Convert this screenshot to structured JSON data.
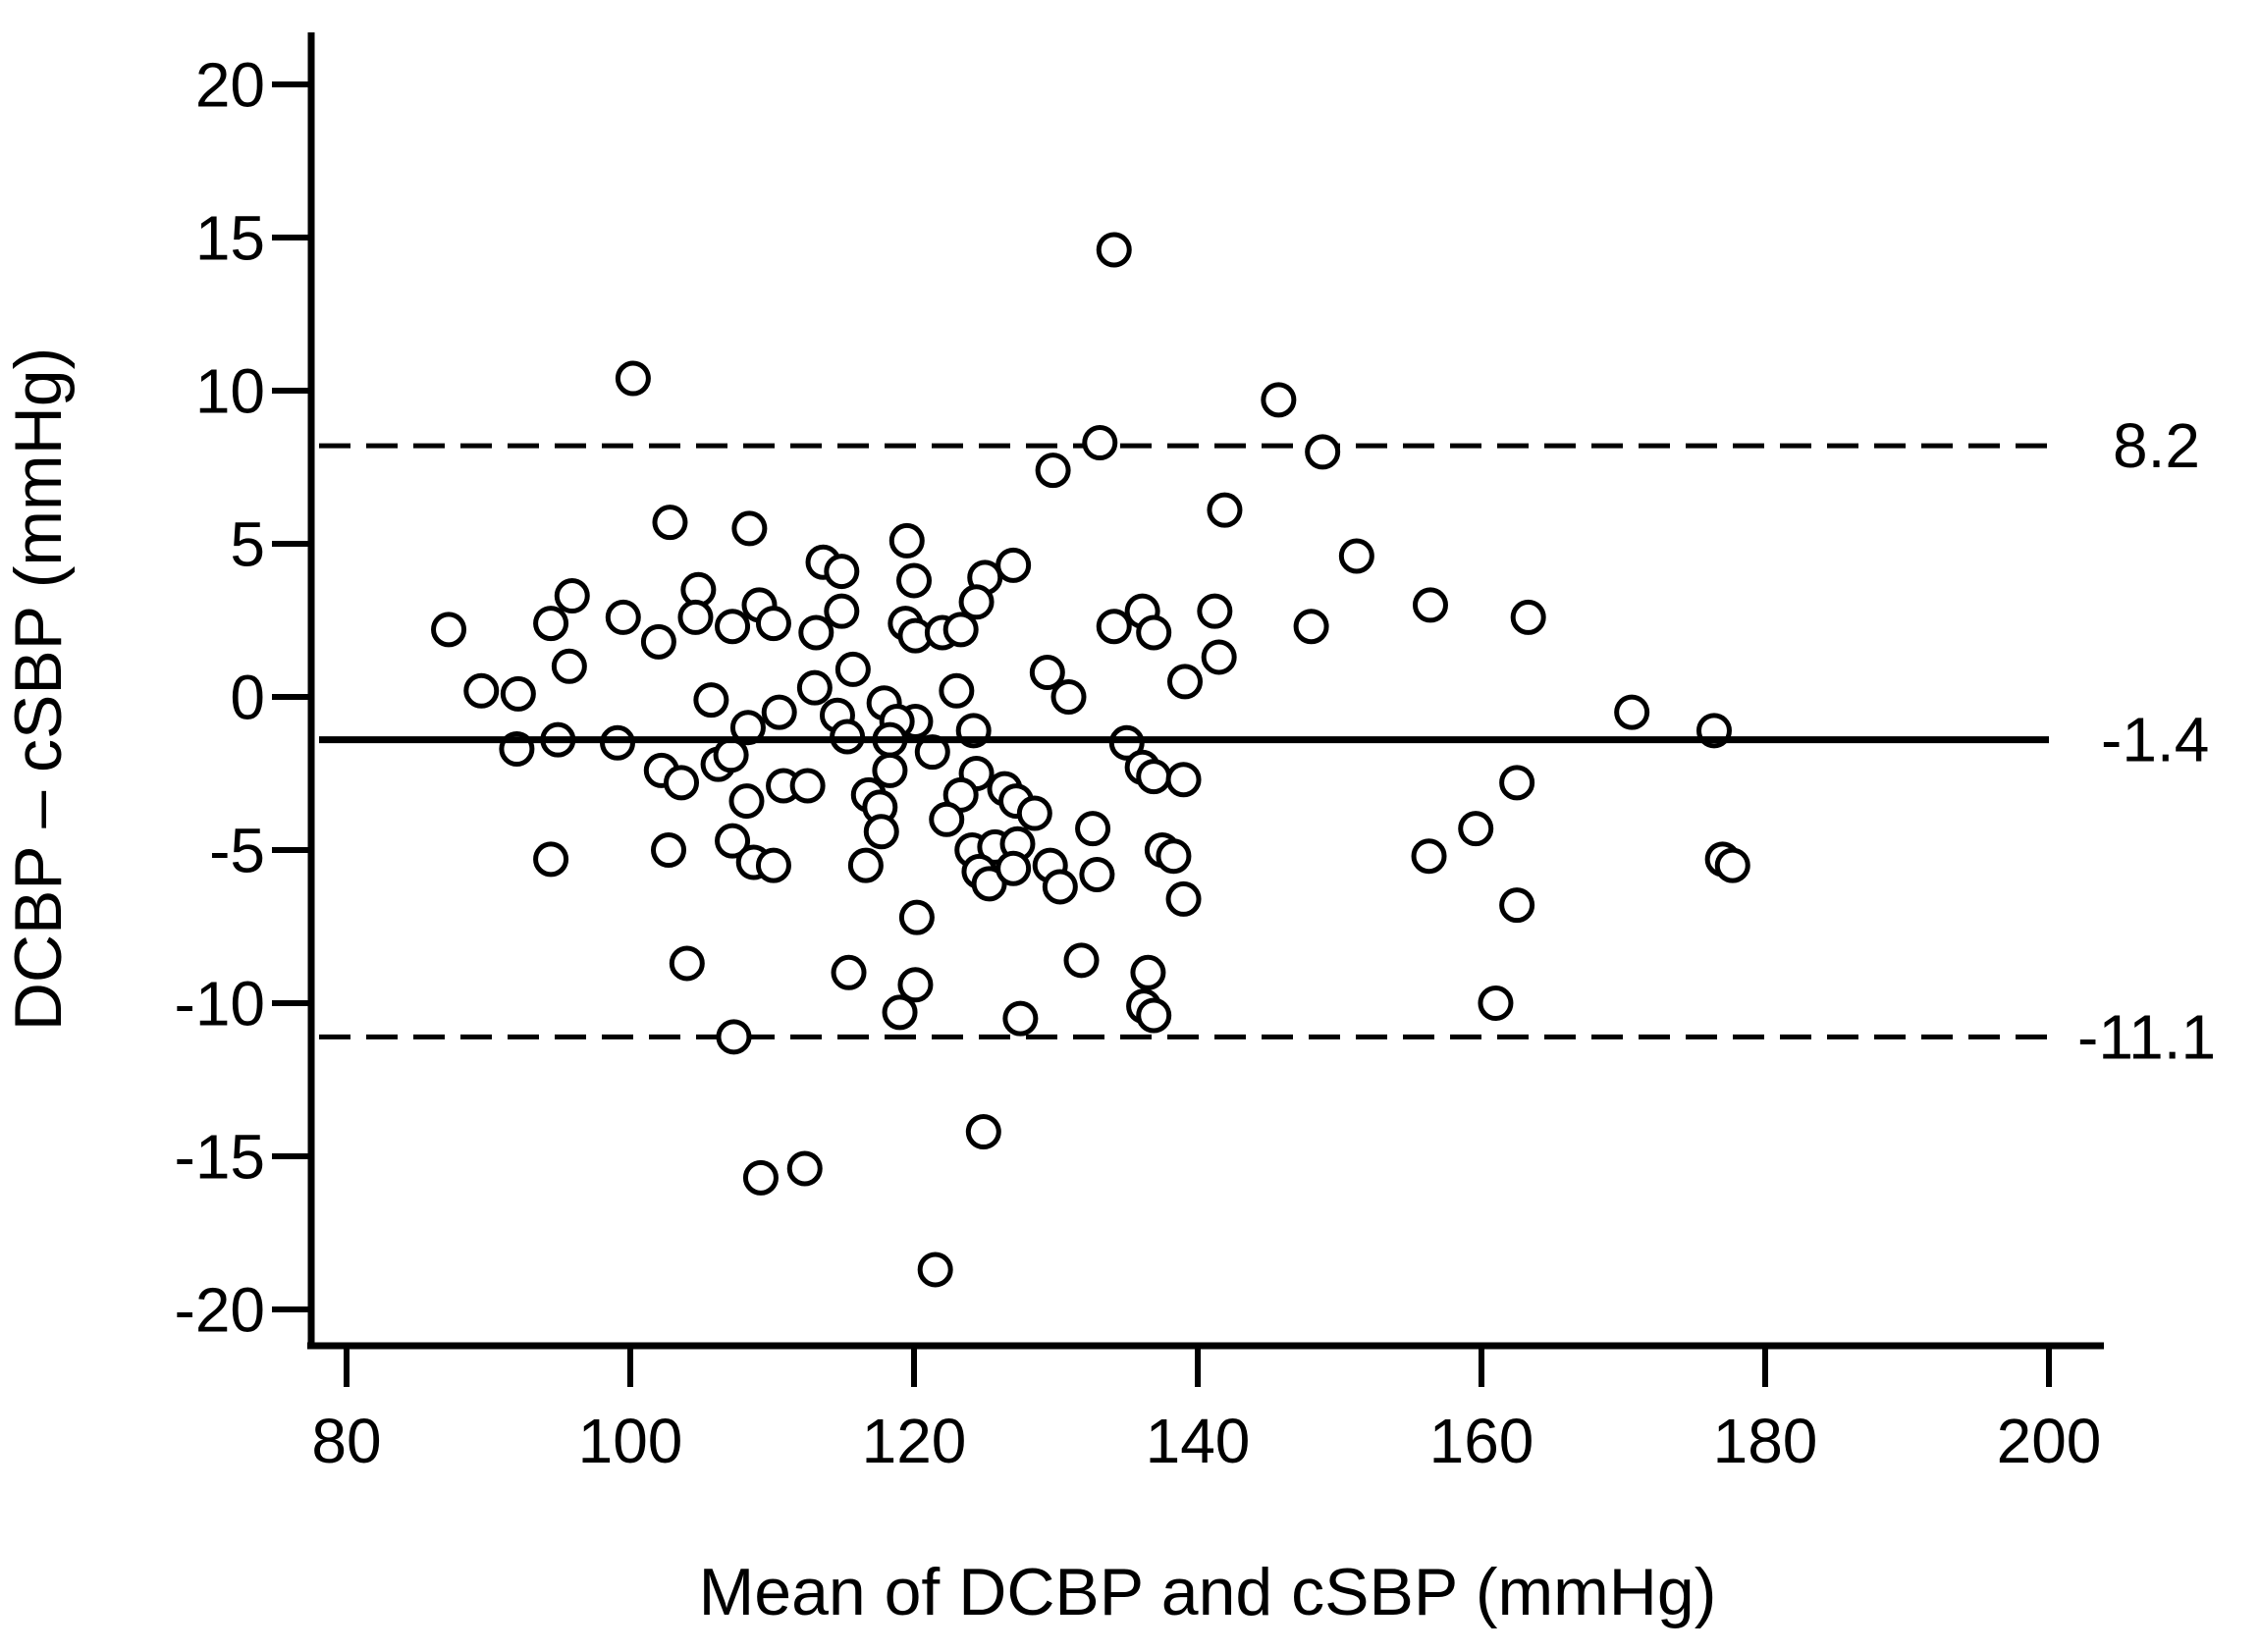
{
  "figure": {
    "background_color": "#ffffff",
    "ink_color": "#000000"
  },
  "chart_data": {
    "type": "scatter",
    "title": "",
    "xlabel": "Mean of DCBP and cSBP (mmHg)",
    "ylabel": "DCBP – cSBP (mmHg)",
    "marker": "open-circle",
    "grid": false,
    "legend": "none",
    "x_ticks": [
      80,
      100,
      120,
      140,
      160,
      180,
      200
    ],
    "y_ticks": [
      -20,
      -15,
      -10,
      -5,
      0,
      5,
      10,
      15,
      20
    ],
    "xlim": [
      77.5,
      204
    ],
    "ylim": [
      -21.5,
      21.7
    ],
    "mean_line": {
      "value": -1.4,
      "label": "-1.4",
      "style": "solid"
    },
    "upper_loa_line": {
      "value": 8.2,
      "label": "8.2",
      "style": "dashed"
    },
    "lower_loa_line": {
      "value": -11.1,
      "label": "-11.1",
      "style": "dashed"
    },
    "points": [
      [
        100.2,
        10.4
      ],
      [
        134.1,
        14.6
      ],
      [
        145.7,
        9.7
      ],
      [
        148.8,
        8.0
      ],
      [
        133.1,
        8.3
      ],
      [
        129.8,
        7.4
      ],
      [
        141.9,
        6.1
      ],
      [
        119.5,
        5.1
      ],
      [
        102.8,
        5.7
      ],
      [
        108.4,
        5.5
      ],
      [
        151.2,
        4.6
      ],
      [
        113.6,
        4.4
      ],
      [
        114.9,
        4.1
      ],
      [
        127.0,
        4.3
      ],
      [
        125.0,
        3.9
      ],
      [
        120.0,
        3.8
      ],
      [
        104.8,
        3.5
      ],
      [
        95.9,
        3.3
      ],
      [
        94.4,
        2.4
      ],
      [
        87.2,
        2.2
      ],
      [
        99.5,
        2.6
      ],
      [
        102.0,
        1.8
      ],
      [
        104.6,
        2.6
      ],
      [
        107.2,
        2.3
      ],
      [
        109.1,
        3.0
      ],
      [
        110.1,
        2.4
      ],
      [
        113.1,
        2.1
      ],
      [
        114.9,
        2.8
      ],
      [
        124.4,
        3.1
      ],
      [
        119.4,
        2.4
      ],
      [
        120.1,
        2.0
      ],
      [
        122.0,
        2.1
      ],
      [
        123.3,
        2.2
      ],
      [
        134.1,
        2.3
      ],
      [
        136.1,
        2.8
      ],
      [
        136.9,
        2.1
      ],
      [
        141.2,
        2.8
      ],
      [
        148.0,
        2.3
      ],
      [
        156.4,
        3.0
      ],
      [
        163.3,
        2.6
      ],
      [
        141.5,
        1.3
      ],
      [
        139.1,
        0.5
      ],
      [
        129.4,
        0.8
      ],
      [
        130.9,
        0.0
      ],
      [
        89.5,
        0.2
      ],
      [
        92.1,
        0.1
      ],
      [
        95.7,
        1.0
      ],
      [
        105.7,
        -0.1
      ],
      [
        108.3,
        -1.0
      ],
      [
        110.5,
        -0.5
      ],
      [
        115.7,
        0.9
      ],
      [
        114.6,
        -0.6
      ],
      [
        115.3,
        -1.3
      ],
      [
        113.0,
        0.3
      ],
      [
        123.0,
        0.2
      ],
      [
        92.0,
        -1.7
      ],
      [
        94.9,
        -1.4
      ],
      [
        99.1,
        -1.5
      ],
      [
        120.1,
        -0.8
      ],
      [
        117.9,
        -0.2
      ],
      [
        118.8,
        -0.8
      ],
      [
        118.3,
        -1.4
      ],
      [
        121.3,
        -1.8
      ],
      [
        124.2,
        -1.1
      ],
      [
        135.0,
        -1.5
      ],
      [
        170.6,
        -0.5
      ],
      [
        176.4,
        -1.1
      ],
      [
        102.2,
        -2.4
      ],
      [
        103.6,
        -2.8
      ],
      [
        106.2,
        -2.2
      ],
      [
        107.1,
        -1.9
      ],
      [
        118.3,
        -2.4
      ],
      [
        116.8,
        -3.2
      ],
      [
        117.6,
        -3.6
      ],
      [
        136.1,
        -2.3
      ],
      [
        136.9,
        -2.6
      ],
      [
        139.0,
        -2.7
      ],
      [
        162.5,
        -2.8
      ],
      [
        110.8,
        -2.9
      ],
      [
        112.5,
        -2.9
      ],
      [
        108.2,
        -3.4
      ],
      [
        124.4,
        -2.5
      ],
      [
        123.3,
        -3.2
      ],
      [
        122.3,
        -4.0
      ],
      [
        126.4,
        -3.0
      ],
      [
        127.2,
        -3.4
      ],
      [
        128.5,
        -3.8
      ],
      [
        102.7,
        -5.0
      ],
      [
        94.4,
        -5.3
      ],
      [
        107.2,
        -4.7
      ],
      [
        108.7,
        -5.4
      ],
      [
        110.1,
        -5.5
      ],
      [
        117.7,
        -4.4
      ],
      [
        116.6,
        -5.5
      ],
      [
        132.6,
        -4.3
      ],
      [
        137.5,
        -5.0
      ],
      [
        138.3,
        -5.2
      ],
      [
        159.6,
        -4.3
      ],
      [
        156.3,
        -5.2
      ],
      [
        177.0,
        -5.3
      ],
      [
        177.7,
        -5.5
      ],
      [
        124.1,
        -5.0
      ],
      [
        125.7,
        -4.9
      ],
      [
        127.3,
        -4.8
      ],
      [
        129.6,
        -5.5
      ],
      [
        124.6,
        -5.7
      ],
      [
        125.3,
        -6.1
      ],
      [
        127.0,
        -5.6
      ],
      [
        132.9,
        -5.8
      ],
      [
        139.0,
        -6.6
      ],
      [
        130.3,
        -6.2
      ],
      [
        162.5,
        -6.8
      ],
      [
        120.2,
        -7.2
      ],
      [
        104.0,
        -8.7
      ],
      [
        115.4,
        -9.0
      ],
      [
        120.1,
        -9.4
      ],
      [
        119.0,
        -10.3
      ],
      [
        127.5,
        -10.5
      ],
      [
        131.8,
        -8.6
      ],
      [
        136.5,
        -9.0
      ],
      [
        136.2,
        -10.1
      ],
      [
        136.9,
        -10.4
      ],
      [
        161.0,
        -10.0
      ],
      [
        107.3,
        -11.1
      ],
      [
        124.9,
        -14.2
      ],
      [
        109.2,
        -15.7
      ],
      [
        112.3,
        -15.4
      ],
      [
        121.5,
        -18.7
      ]
    ]
  }
}
